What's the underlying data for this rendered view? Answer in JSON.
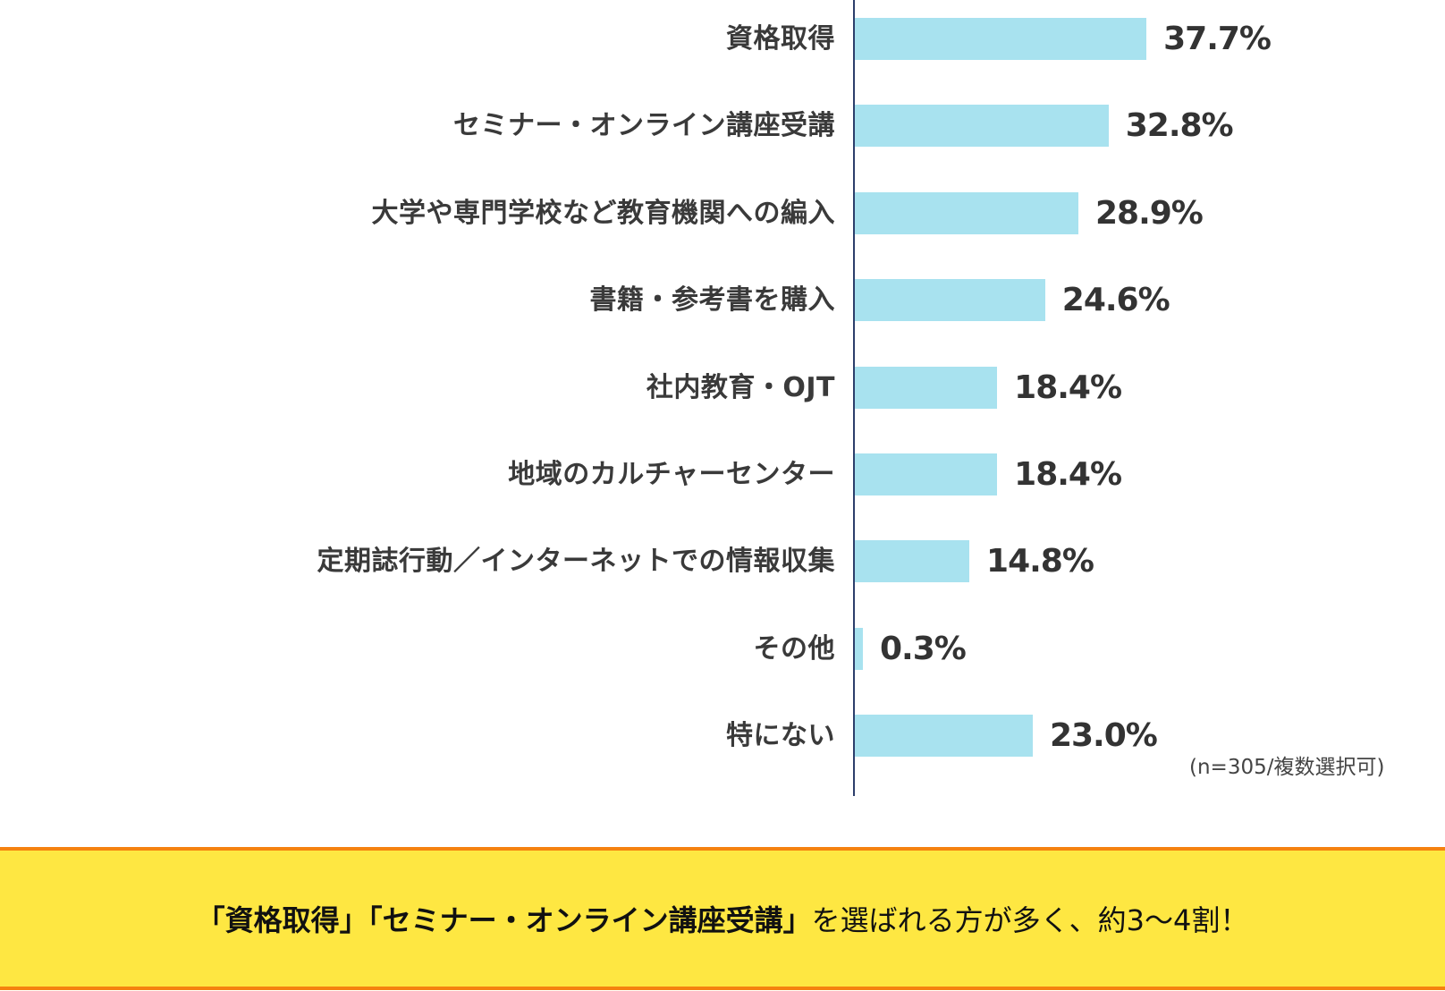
{
  "chart_data": {
    "type": "bar",
    "orientation": "horizontal",
    "categories": [
      "資格取得",
      "セミナー・オンライン講座受講",
      "大学や専門学校など教育機関への編入",
      "書籍・参考書を購入",
      "社内教育・OJT",
      "地域のカルチャーセンター",
      "定期誌行動／インターネットでの情報収集",
      "その他",
      "特にない"
    ],
    "values": [
      37.7,
      32.8,
      28.9,
      24.6,
      18.4,
      18.4,
      14.8,
      0.3,
      23.0
    ],
    "value_labels": [
      "37.7%",
      "32.8%",
      "28.9%",
      "24.6%",
      "18.4%",
      "18.4%",
      "14.8%",
      "0.3%",
      "23.0%"
    ],
    "unit": "%",
    "title": "",
    "xlabel": "",
    "ylabel": "",
    "xlim": [
      0,
      100
    ],
    "grid": false,
    "legend": null,
    "bar_color": "#a8e2ef",
    "axis_color": "#2c3e6b",
    "annotation": "(n=305/複数選択可)"
  },
  "note": "(n=305/複数選択可)",
  "callout": {
    "part1": "「資格取得」「セミナー・オンライン講座受講」",
    "part2": "を選ばれる方が多く、約3〜4割！",
    "background": "#fee742",
    "border": "#f5820f"
  }
}
